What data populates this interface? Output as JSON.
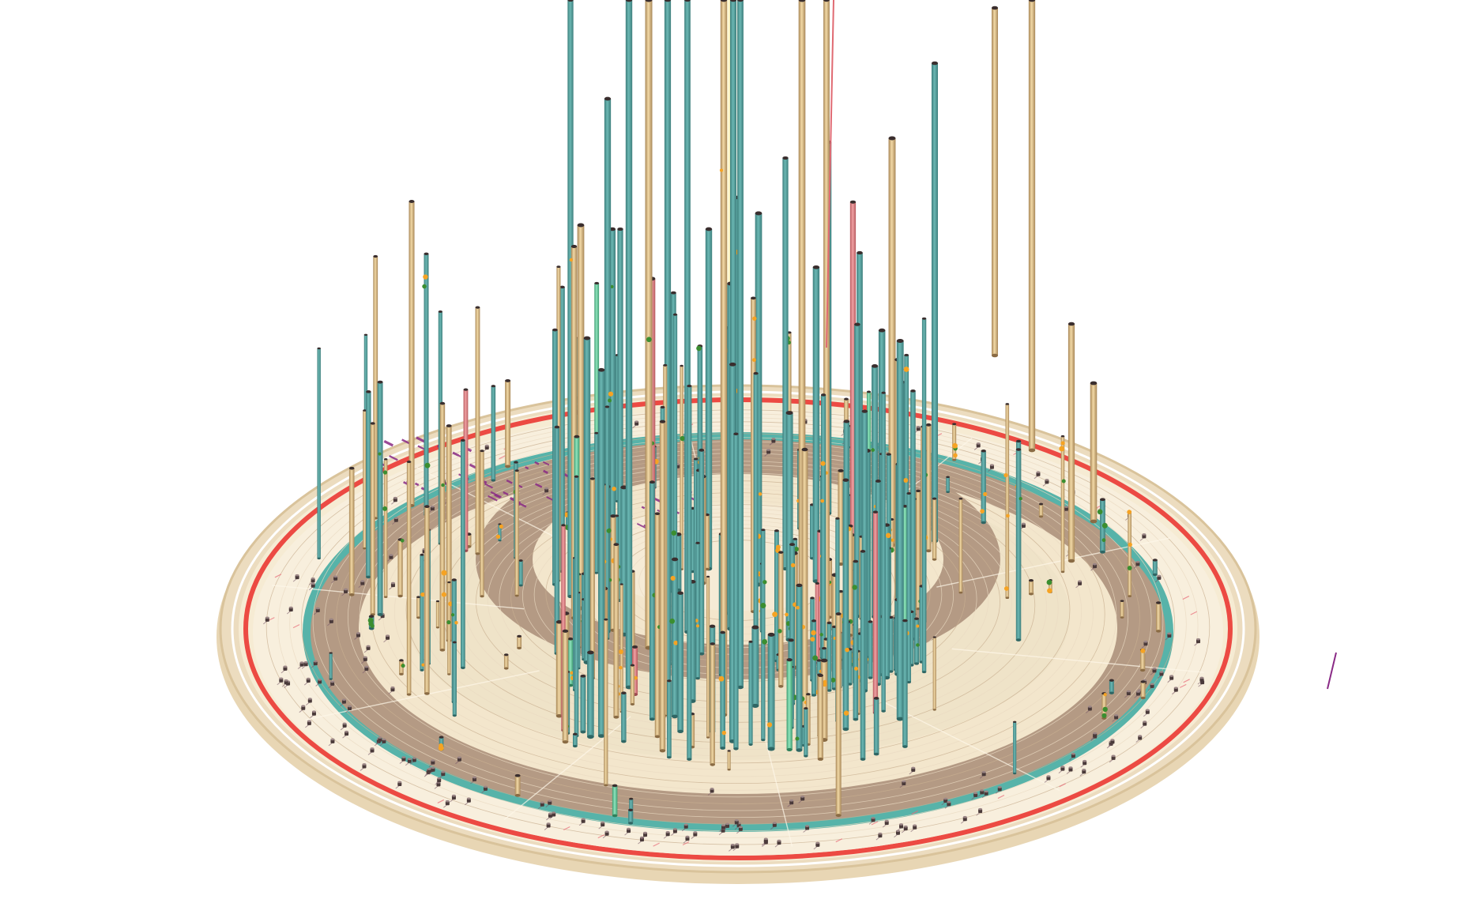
{
  "scene": {
    "kind": "3d radial code-city visualization",
    "background": "#ffffff"
  },
  "palette": {
    "outer_disc": "#ecdcbf",
    "outer_disc_edge": "#d9c39b",
    "light_ring": "#f6ebd3",
    "cream_ring": "#f8efdd",
    "dark_ring": "#b49a84",
    "mid_ring": "#efe3c8",
    "inner_light": "#f3e6cc",
    "red_ring": "#ec4a43",
    "teal_ring": "#57b3a9",
    "white_ring": "#ffffff",
    "tower_teal": "#5aa6a3",
    "tower_teal_dark": "#3d7d7c",
    "tower_tan": "#e2c691",
    "tower_tan_dark": "#a88758",
    "tower_pink": "#e88b8e",
    "tower_mint": "#74d3a5",
    "cap_dark": "#4a3a3a",
    "dot_orange": "#f6a323",
    "dot_green": "#3b8e30",
    "purple_mark": "#8a2b86",
    "pink_line": "#e86b78",
    "yellow_beam": "#fff3b0"
  },
  "rings": [
    {
      "name": "outer-disc",
      "color_key": "outer_disc"
    },
    {
      "name": "white-ring",
      "color_key": "white_ring"
    },
    {
      "name": "red-ring",
      "color_key": "red_ring"
    },
    {
      "name": "teal-ring",
      "color_key": "teal_ring"
    },
    {
      "name": "dark-ring-outer",
      "color_key": "dark_ring"
    },
    {
      "name": "dark-ring-inner",
      "color_key": "dark_ring"
    }
  ],
  "towers": {
    "count_estimate": 260,
    "color_mix": [
      "tower_teal",
      "tower_tan",
      "tower_pink",
      "tower_mint"
    ]
  },
  "floor_markers": {
    "count_estimate": 180,
    "color_key": "cap_dark"
  }
}
